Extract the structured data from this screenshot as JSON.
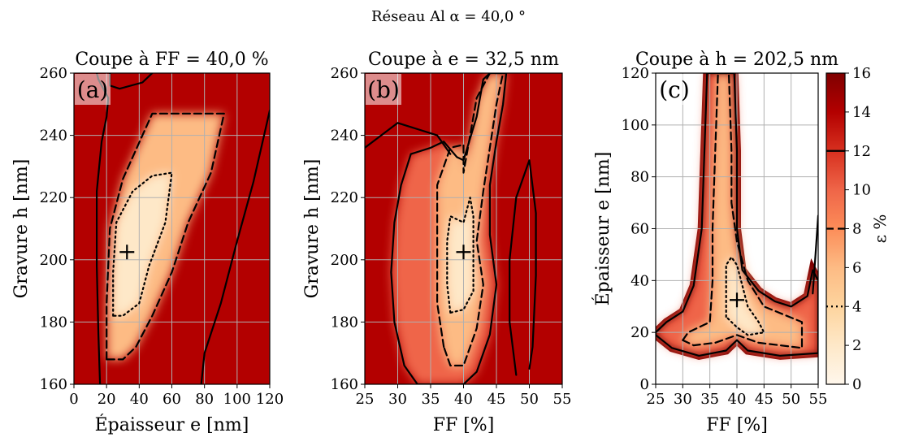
{
  "suptitle": "Réseau Al α = 40,0 °",
  "colormap": {
    "name": "OrRd",
    "stops": [
      "#fff7ec",
      "#fee8c8",
      "#fdd49e",
      "#fdbb84",
      "#fc8d59",
      "#ef6548",
      "#d7301f",
      "#b30000",
      "#7f0000"
    ]
  },
  "chart_data": [
    {
      "type": "heatmap",
      "panel": "(a)",
      "title": "Coupe à FF = 40,0 %",
      "xlabel": "Épaisseur e [nm]",
      "ylabel": "Gravure h [nm]",
      "xlim": [
        0,
        120
      ],
      "ylim": [
        160,
        260
      ],
      "xticks": [
        "0",
        "20",
        "40",
        "60",
        "80",
        "100",
        "120"
      ],
      "yticks": [
        "160",
        "180",
        "200",
        "220",
        "240",
        "260"
      ],
      "grid": true,
      "marker": {
        "x": 32.5,
        "y": 202.5,
        "symbol": "+"
      },
      "contours": [
        {
          "level": 4,
          "style": "dotted",
          "closed": true,
          "points": [
            [
              24,
              182
            ],
            [
              24,
              196
            ],
            [
              26,
              212
            ],
            [
              36,
              222
            ],
            [
              48,
              227
            ],
            [
              60,
              228
            ],
            [
              56,
              212
            ],
            [
              46,
              198
            ],
            [
              40,
              186
            ],
            [
              30,
              182
            ]
          ]
        },
        {
          "level": 8,
          "style": "dashed",
          "closed": true,
          "points": [
            [
              20,
              168
            ],
            [
              20,
              186
            ],
            [
              22,
              210
            ],
            [
              30,
              226
            ],
            [
              42,
              240
            ],
            [
              48,
              247
            ],
            [
              92,
              247
            ],
            [
              84,
              228
            ],
            [
              70,
              212
            ],
            [
              60,
              196
            ],
            [
              48,
              182
            ],
            [
              38,
              172
            ],
            [
              30,
              168
            ]
          ]
        },
        {
          "level": 12,
          "style": "solid",
          "closed": false,
          "points": [
            [
              16,
              160
            ],
            [
              15,
              176
            ],
            [
              14,
              198
            ],
            [
              14,
              222
            ],
            [
              17,
              238
            ],
            [
              20,
              246
            ],
            [
              21,
              252
            ],
            [
              15,
              258
            ],
            [
              14,
              260
            ]
          ]
        },
        {
          "level": 12,
          "style": "solid",
          "closed": false,
          "points": [
            [
              22,
              260
            ],
            [
              22,
              256
            ],
            [
              28,
              255
            ],
            [
              42,
              257
            ],
            [
              48,
              260
            ]
          ]
        },
        {
          "level": 12,
          "style": "solid",
          "closed": false,
          "points": [
            [
              78,
              160
            ],
            [
              80,
              170
            ],
            [
              90,
              186
            ],
            [
              100,
              206
            ],
            [
              110,
              225
            ],
            [
              120,
              248
            ]
          ]
        }
      ]
    },
    {
      "type": "heatmap",
      "panel": "(b)",
      "title": "Coupe à e = 32,5 nm",
      "xlabel": "FF [%]",
      "ylabel": "Gravure h [nm]",
      "xlim": [
        25,
        55
      ],
      "ylim": [
        160,
        260
      ],
      "xticks": [
        "25",
        "30",
        "35",
        "40",
        "45",
        "50",
        "55"
      ],
      "yticks": [
        "160",
        "180",
        "200",
        "220",
        "240",
        "260"
      ],
      "grid": true,
      "marker": {
        "x": 40,
        "y": 202.5,
        "symbol": "+"
      },
      "contours": [
        {
          "level": 4,
          "style": "dotted",
          "closed": true,
          "points": [
            [
              38,
              183
            ],
            [
              37.5,
              192
            ],
            [
              37.5,
              206
            ],
            [
              38,
              214
            ],
            [
              40,
              212
            ],
            [
              41,
              220
            ],
            [
              41.5,
              214
            ],
            [
              41.5,
              200
            ],
            [
              41.5,
              190
            ],
            [
              40,
              184
            ]
          ]
        },
        {
          "level": 8,
          "style": "dashed",
          "closed": true,
          "points": [
            [
              37,
              172
            ],
            [
              36,
              186
            ],
            [
              36,
              206
            ],
            [
              36,
              224
            ],
            [
              38,
              236
            ],
            [
              40,
              237
            ],
            [
              40,
              228
            ],
            [
              41,
              240
            ],
            [
              42,
              252
            ],
            [
              44,
              260
            ],
            [
              46,
              260
            ],
            [
              45,
              250
            ],
            [
              44,
              236
            ],
            [
              43,
              222
            ],
            [
              42,
              206
            ],
            [
              43,
              192
            ],
            [
              42,
              178
            ],
            [
              40,
              166
            ],
            [
              38,
              166
            ]
          ]
        },
        {
          "level": 12,
          "style": "solid",
          "closed": true,
          "points": [
            [
              31,
              166
            ],
            [
              29.5,
              180
            ],
            [
              29,
              196
            ],
            [
              29.5,
              212
            ],
            [
              30.5,
              224
            ],
            [
              32,
              234
            ],
            [
              35,
              236
            ],
            [
              37,
              238
            ],
            [
              39,
              233
            ],
            [
              40,
              232
            ],
            [
              42,
              246
            ],
            [
              43,
              258
            ],
            [
              44,
              260
            ],
            [
              46.5,
              260
            ],
            [
              46,
              250
            ],
            [
              45,
              238
            ],
            [
              44,
              224
            ],
            [
              44,
              208
            ],
            [
              45,
              192
            ],
            [
              44,
              176
            ],
            [
              42,
              164
            ],
            [
              40,
              160
            ],
            [
              33,
              160
            ]
          ]
        },
        {
          "level": 12,
          "style": "solid",
          "closed": false,
          "points": [
            [
              25,
              236
            ],
            [
              30,
              244
            ],
            [
              36,
              240
            ],
            [
              38,
              234
            ]
          ]
        },
        {
          "level": 12,
          "style": "solid",
          "closed": false,
          "points": [
            [
              48,
              163
            ],
            [
              47,
              180
            ],
            [
              47,
              200
            ],
            [
              48,
              220
            ],
            [
              50,
              232
            ],
            [
              51,
              215
            ],
            [
              51,
              195
            ],
            [
              50.5,
              172
            ],
            [
              50,
              165
            ]
          ]
        }
      ]
    },
    {
      "type": "heatmap",
      "panel": "(c)",
      "title": "Coupe à h = 202,5 nm",
      "xlabel": "FF [%]",
      "ylabel": "Épaisseur e [nm]",
      "xlim": [
        25,
        55
      ],
      "ylim": [
        0,
        120
      ],
      "xticks": [
        "25",
        "30",
        "35",
        "40",
        "45",
        "50",
        "55"
      ],
      "yticks": [
        "0",
        "20",
        "40",
        "60",
        "80",
        "100",
        "120"
      ],
      "grid": true,
      "marker": {
        "x": 40,
        "y": 32.5,
        "symbol": "+"
      },
      "contours": [
        {
          "level": 4,
          "style": "dotted",
          "closed": true,
          "points": [
            [
              38,
              26
            ],
            [
              38,
              36
            ],
            [
              38,
              46
            ],
            [
              39,
              49
            ],
            [
              40,
              46
            ],
            [
              41,
              38
            ],
            [
              42,
              30
            ],
            [
              44,
              24
            ],
            [
              45,
              20
            ],
            [
              42,
              19
            ],
            [
              40,
              22
            ]
          ]
        },
        {
          "level": 8,
          "style": "dashed",
          "closed": true,
          "points": [
            [
              30,
              17
            ],
            [
              31,
              20
            ],
            [
              33,
              22
            ],
            [
              35,
              24
            ],
            [
              35.5,
              40
            ],
            [
              35.5,
              60
            ],
            [
              36,
              90
            ],
            [
              36.5,
              120
            ],
            [
              38.5,
              120
            ],
            [
              39,
              90
            ],
            [
              39,
              70
            ],
            [
              40,
              55
            ],
            [
              42,
              40
            ],
            [
              45,
              30
            ],
            [
              52,
              24
            ],
            [
              52,
              14
            ],
            [
              44,
              16
            ],
            [
              40,
              19
            ],
            [
              36,
              16
            ],
            [
              32,
              15
            ]
          ]
        },
        {
          "level": 12,
          "style": "solid",
          "closed": true,
          "points": [
            [
              25,
              20
            ],
            [
              27,
              24
            ],
            [
              30,
              28
            ],
            [
              32,
              38
            ],
            [
              33.5,
              60
            ],
            [
              34,
              90
            ],
            [
              34.5,
              120
            ],
            [
              39.5,
              120
            ],
            [
              40,
              90
            ],
            [
              40,
              60
            ],
            [
              41,
              44
            ],
            [
              44,
              36
            ],
            [
              47,
              32
            ],
            [
              50,
              30
            ],
            [
              53,
              34
            ],
            [
              54,
              44
            ],
            [
              55,
              40
            ],
            [
              55,
              12
            ],
            [
              48,
              11
            ],
            [
              42,
              13
            ],
            [
              40,
              17
            ],
            [
              38,
              13
            ],
            [
              33,
              11
            ],
            [
              28,
              14
            ],
            [
              25,
              19
            ]
          ]
        },
        {
          "level": 12,
          "style": "solid",
          "closed": false,
          "points": [
            [
              54,
              35
            ],
            [
              54.5,
              50
            ],
            [
              55,
              65
            ]
          ]
        }
      ]
    }
  ],
  "colorbar": {
    "label": "ε %",
    "min": 0,
    "max": 16,
    "ticks": [
      "0",
      "2",
      "4",
      "6",
      "8",
      "10",
      "12",
      "14",
      "16"
    ],
    "contour_marks": [
      {
        "level": 12,
        "style": "solid"
      },
      {
        "level": 8,
        "style": "dashed"
      },
      {
        "level": 4,
        "style": "dotted"
      }
    ]
  }
}
